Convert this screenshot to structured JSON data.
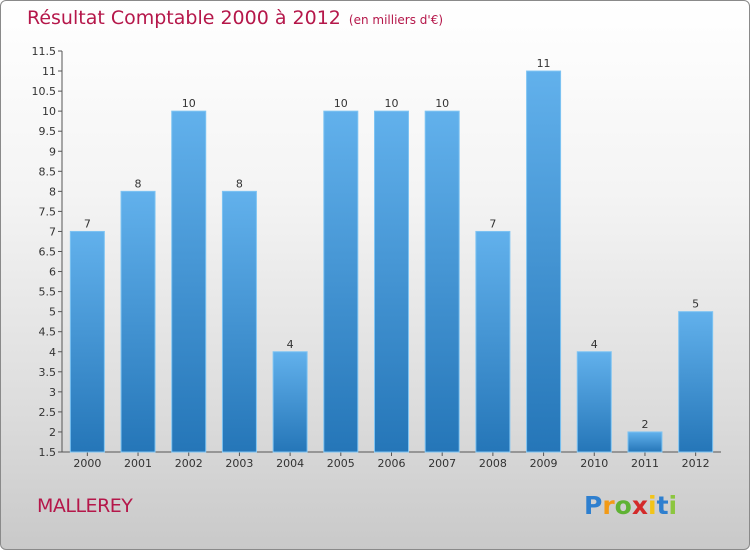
{
  "title": "Résultat Comptable 2000 à 2012",
  "unit_note": "(en milliers d'€)",
  "commune": "MALLEREY",
  "logo": {
    "p": "P",
    "r": "r",
    "o": "o",
    "x": "x",
    "i": "i",
    "t": "t",
    "i2": "i"
  },
  "colors": {
    "title": "#b5174a",
    "bar_top": "#62b1ec",
    "bar_bottom": "#2576b8"
  },
  "chart_data": {
    "type": "bar",
    "title": "Résultat Comptable 2000 à 2012",
    "ylabel": "(en milliers d'€)",
    "xlabel": "",
    "categories": [
      "2000",
      "2001",
      "2002",
      "2003",
      "2004",
      "2005",
      "2006",
      "2007",
      "2008",
      "2009",
      "2010",
      "2011",
      "2012"
    ],
    "values": [
      7,
      8,
      10,
      8,
      4,
      10,
      10,
      10,
      7,
      11,
      4,
      2,
      5
    ],
    "value_labels": [
      "7",
      "8",
      "10",
      "8",
      "4",
      "10",
      "10",
      "10",
      "7",
      "11",
      "4",
      "2",
      "5"
    ],
    "ylim": [
      1.5,
      11.5
    ],
    "yticks": [
      "1.5",
      "2",
      "2.5",
      "3",
      "3.5",
      "4",
      "4.5",
      "5",
      "5.5",
      "6",
      "6.5",
      "7",
      "7.5",
      "8",
      "8.5",
      "9",
      "9.5",
      "10",
      "10.5",
      "11",
      "11.5"
    ],
    "grid": false,
    "legend": "none"
  }
}
